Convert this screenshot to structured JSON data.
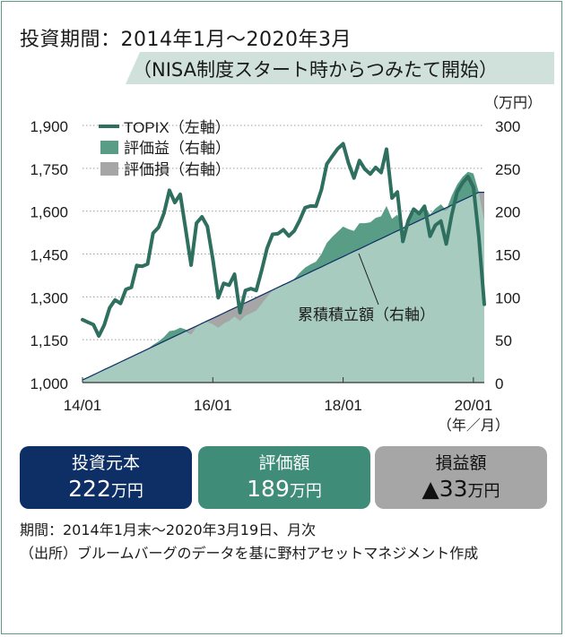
{
  "header": {
    "title": "投資期間：2014年1月～2020年3月",
    "subtitle": "（NISA制度スタート時からつみたて開始）"
  },
  "summary": {
    "invest_label": "投資元本",
    "invest_value": "222",
    "eval_label": "評価額",
    "eval_value": "189",
    "loss_label": "損益額",
    "loss_value": "▲33",
    "unit": "万円"
  },
  "notes": {
    "period": "期間：2014年1月末～2020年3月19日、月次",
    "source": "（出所）ブルームバーグのデータを基に野村アセットマネジメント作成"
  },
  "colors": {
    "topix_line": "#2f6f5f",
    "gain_fill": "#5a9d86",
    "base_fill": "#a7cbbf",
    "loss_fill": "#a6a6a6",
    "cumulative_line": "#0d2f66",
    "grid": "#9a9a9a"
  },
  "chart_data": {
    "type": "line",
    "xlabel": "",
    "x_ticks": [
      "14/01",
      "16/01",
      "18/01",
      "20/01"
    ],
    "x_unit_label": "（年／月）",
    "y_left": {
      "ticks": [
        "1,000",
        "1,150",
        "1,300",
        "1,450",
        "1,600",
        "1,750",
        "1,900"
      ],
      "range": [
        1000,
        1900
      ]
    },
    "y_right": {
      "ticks": [
        "0",
        "50",
        "100",
        "150",
        "200",
        "250",
        "300"
      ],
      "range": [
        0,
        300
      ],
      "unit": "（万円）"
    },
    "grid": true,
    "legend_position": "top-left",
    "legend": [
      "TOPIX（左軸）",
      "評価益（右軸）",
      "評価損（右軸）"
    ],
    "annotation": "累積積立額（右軸）",
    "months": [
      "2014-01",
      "2014-02",
      "2014-03",
      "2014-04",
      "2014-05",
      "2014-06",
      "2014-07",
      "2014-08",
      "2014-09",
      "2014-10",
      "2014-11",
      "2014-12",
      "2015-01",
      "2015-02",
      "2015-03",
      "2015-04",
      "2015-05",
      "2015-06",
      "2015-07",
      "2015-08",
      "2015-09",
      "2015-10",
      "2015-11",
      "2015-12",
      "2016-01",
      "2016-02",
      "2016-03",
      "2016-04",
      "2016-05",
      "2016-06",
      "2016-07",
      "2016-08",
      "2016-09",
      "2016-10",
      "2016-11",
      "2016-12",
      "2017-01",
      "2017-02",
      "2017-03",
      "2017-04",
      "2017-05",
      "2017-06",
      "2017-07",
      "2017-08",
      "2017-09",
      "2017-10",
      "2017-11",
      "2017-12",
      "2018-01",
      "2018-02",
      "2018-03",
      "2018-04",
      "2018-05",
      "2018-06",
      "2018-07",
      "2018-08",
      "2018-09",
      "2018-10",
      "2018-11",
      "2018-12",
      "2019-01",
      "2019-02",
      "2019-03",
      "2019-04",
      "2019-05",
      "2019-06",
      "2019-07",
      "2019-08",
      "2019-09",
      "2019-10",
      "2019-11",
      "2019-12",
      "2020-01",
      "2020-02",
      "2020-03"
    ],
    "series": [
      {
        "name": "TOPIX（左軸）",
        "axis": "left",
        "values": [
          1220,
          1211,
          1203,
          1163,
          1201,
          1262,
          1289,
          1277,
          1326,
          1333,
          1410,
          1407,
          1415,
          1523,
          1543,
          1592,
          1673,
          1630,
          1659,
          1537,
          1411,
          1558,
          1580,
          1547,
          1432,
          1297,
          1347,
          1341,
          1379,
          1245,
          1322,
          1329,
          1322,
          1393,
          1470,
          1519,
          1521,
          1535,
          1513,
          1531,
          1568,
          1612,
          1618,
          1617,
          1675,
          1765,
          1792,
          1818,
          1836,
          1768,
          1716,
          1777,
          1747,
          1730,
          1753,
          1735,
          1817,
          1646,
          1667,
          1494,
          1567,
          1607,
          1591,
          1617,
          1512,
          1551,
          1565,
          1485,
          1587,
          1667,
          1699,
          1721,
          1684,
          1511,
          1274
        ]
      },
      {
        "name": "累積積立額（右軸）",
        "axis": "right",
        "values": [
          3.0,
          6.0,
          9.0,
          12.0,
          15.0,
          18.0,
          21.0,
          24.0,
          27.0,
          30.0,
          33.0,
          36.0,
          39.0,
          42.0,
          45.0,
          48.0,
          51.0,
          54.0,
          57.0,
          60.0,
          63.0,
          66.0,
          69.0,
          72.0,
          75.0,
          78.0,
          81.0,
          84.0,
          87.0,
          90.0,
          93.0,
          96.0,
          99.0,
          102.0,
          105.0,
          108.0,
          111.0,
          114.0,
          117.0,
          120.0,
          123.0,
          126.0,
          129.0,
          132.0,
          135.0,
          138.0,
          141.0,
          144.0,
          147.0,
          150.0,
          153.0,
          156.0,
          159.0,
          162.0,
          165.0,
          168.0,
          171.0,
          174.0,
          177.0,
          180.0,
          183.0,
          186.0,
          189.0,
          192.0,
          195.0,
          198.0,
          201.0,
          204.0,
          207.0,
          210.0,
          213.0,
          216.0,
          219.0,
          222.0,
          222.0
        ]
      },
      {
        "name": "評価額（右軸）",
        "axis": "right",
        "values": [
          3.0,
          6.0,
          9.0,
          12.0,
          15.0,
          18.0,
          21.0,
          24.0,
          27.0,
          30.0,
          33.0,
          36.0,
          39.0,
          44.0,
          48.0,
          53.0,
          60.0,
          61.0,
          64.0,
          62.0,
          56.0,
          65.0,
          70.0,
          71.0,
          68.0,
          64.0,
          69.0,
          72.0,
          77.0,
          72.0,
          78.0,
          81.0,
          84.0,
          92.0,
          100.0,
          108.0,
          111.0,
          115.0,
          116.0,
          121.0,
          128.0,
          134.0,
          138.0,
          141.0,
          150.0,
          163.0,
          170.0,
          176.0,
          182.0,
          179.0,
          177.0,
          186.0,
          186.0,
          187.0,
          192.0,
          194.0,
          206.0,
          191.0,
          196.0,
          179.0,
          190.0,
          198.0,
          200.0,
          206.0,
          196.0,
          203.0,
          208.0,
          201.0,
          218.0,
          231.0,
          240.0,
          246.0,
          244.0,
          222.0,
          189.0
        ]
      }
    ]
  }
}
